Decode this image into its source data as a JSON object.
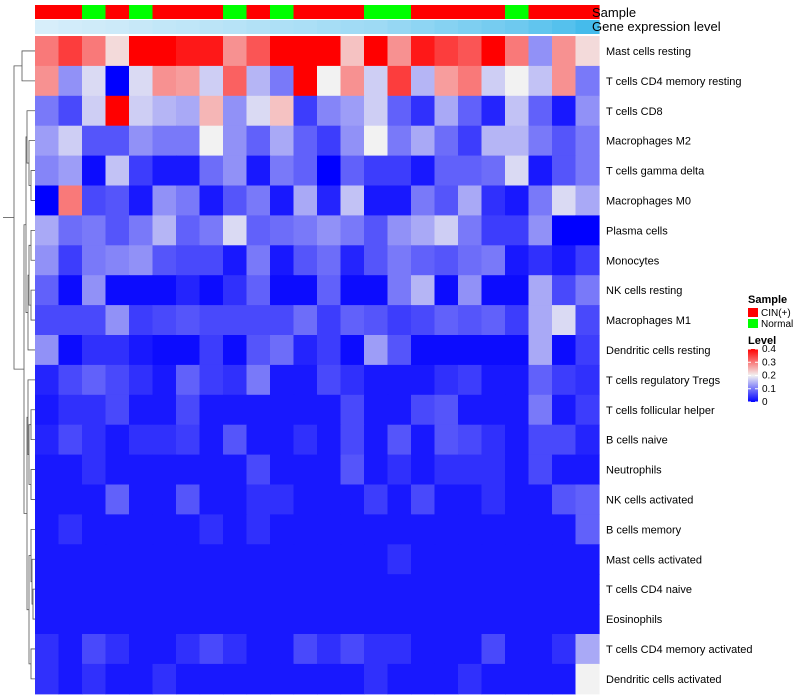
{
  "chart_data": {
    "type": "heatmap",
    "annotations": {
      "sample_label": "Sample",
      "expression_label": "Gene expression level"
    },
    "sample_groups": [
      "CIN",
      "CIN",
      "Normal",
      "CIN",
      "Normal",
      "CIN",
      "CIN",
      "CIN",
      "Normal",
      "CIN",
      "Normal",
      "CIN",
      "CIN",
      "CIN",
      "Normal",
      "Normal",
      "CIN",
      "CIN",
      "CIN",
      "CIN",
      "Normal",
      "CIN",
      "CIN",
      "CIN"
    ],
    "expression_levels": [
      0.05,
      0.08,
      0.1,
      0.12,
      0.15,
      0.18,
      0.2,
      0.22,
      0.25,
      0.28,
      0.3,
      0.32,
      0.35,
      0.38,
      0.4,
      0.45,
      0.5,
      0.55,
      0.6,
      0.65,
      0.7,
      0.78,
      0.85,
      0.95
    ],
    "rows": [
      "Mast cells resting",
      "T cells CD4 memory resting",
      "T cells CD8",
      "Macrophages M2",
      "T cells gamma delta",
      "Macrophages M0",
      "Plasma cells",
      "Monocytes",
      "NK cells resting",
      "Macrophages M1",
      "Dendritic cells resting",
      "T cells regulatory  Tregs",
      "T cells follicular helper",
      "B cells naive",
      "Neutrophils",
      "NK cells activated",
      "B cells memory",
      "Mast cells activated",
      "T cells CD4 naive",
      "Eosinophils",
      "T cells CD4 memory activated",
      "Dendritic cells activated"
    ],
    "values": [
      [
        0.3,
        0.35,
        0.3,
        0.22,
        0.4,
        0.4,
        0.38,
        0.38,
        0.28,
        0.33,
        0.4,
        0.4,
        0.4,
        0.24,
        0.4,
        0.28,
        0.38,
        0.35,
        0.33,
        0.4,
        0.3,
        0.12,
        0.28,
        0.22
      ],
      [
        0.28,
        0.12,
        0.18,
        0.0,
        0.18,
        0.28,
        0.27,
        0.17,
        0.32,
        0.15,
        0.1,
        0.4,
        0.2,
        0.28,
        0.17,
        0.35,
        0.15,
        0.27,
        0.3,
        0.17,
        0.2,
        0.16,
        0.28,
        0.1
      ],
      [
        0.1,
        0.06,
        0.17,
        0.4,
        0.17,
        0.15,
        0.14,
        0.25,
        0.12,
        0.18,
        0.24,
        0.05,
        0.11,
        0.13,
        0.17,
        0.08,
        0.04,
        0.14,
        0.08,
        0.03,
        0.16,
        0.08,
        0.02,
        0.12
      ],
      [
        0.13,
        0.17,
        0.07,
        0.07,
        0.12,
        0.1,
        0.1,
        0.2,
        0.12,
        0.08,
        0.14,
        0.08,
        0.05,
        0.12,
        0.2,
        0.1,
        0.14,
        0.09,
        0.05,
        0.15,
        0.15,
        0.1,
        0.07,
        0.1
      ],
      [
        0.11,
        0.13,
        0.01,
        0.16,
        0.05,
        0.02,
        0.02,
        0.09,
        0.12,
        0.02,
        0.1,
        0.08,
        0.0,
        0.08,
        0.05,
        0.05,
        0.02,
        0.08,
        0.08,
        0.09,
        0.18,
        0.02,
        0.07,
        0.1
      ],
      [
        0.0,
        0.3,
        0.06,
        0.07,
        0.02,
        0.12,
        0.1,
        0.02,
        0.07,
        0.1,
        0.02,
        0.14,
        0.03,
        0.16,
        0.02,
        0.02,
        0.1,
        0.07,
        0.14,
        0.04,
        0.02,
        0.1,
        0.18,
        0.14
      ],
      [
        0.14,
        0.09,
        0.1,
        0.07,
        0.1,
        0.15,
        0.08,
        0.1,
        0.18,
        0.08,
        0.09,
        0.1,
        0.12,
        0.1,
        0.07,
        0.12,
        0.14,
        0.17,
        0.1,
        0.05,
        0.05,
        0.12,
        0.0,
        0.0
      ],
      [
        0.12,
        0.05,
        0.1,
        0.11,
        0.12,
        0.07,
        0.06,
        0.06,
        0.02,
        0.1,
        0.02,
        0.07,
        0.09,
        0.03,
        0.07,
        0.1,
        0.08,
        0.07,
        0.09,
        0.1,
        0.02,
        0.04,
        0.02,
        0.05
      ],
      [
        0.08,
        0.01,
        0.12,
        0.01,
        0.01,
        0.01,
        0.03,
        0.01,
        0.04,
        0.08,
        0.01,
        0.01,
        0.08,
        0.01,
        0.01,
        0.1,
        0.15,
        0.01,
        0.12,
        0.01,
        0.01,
        0.14,
        0.06,
        0.1
      ],
      [
        0.06,
        0.06,
        0.06,
        0.12,
        0.05,
        0.06,
        0.07,
        0.06,
        0.06,
        0.06,
        0.06,
        0.09,
        0.05,
        0.08,
        0.07,
        0.05,
        0.06,
        0.08,
        0.07,
        0.08,
        0.05,
        0.14,
        0.18,
        0.06
      ],
      [
        0.12,
        0.01,
        0.04,
        0.04,
        0.02,
        0.01,
        0.01,
        0.05,
        0.01,
        0.07,
        0.09,
        0.03,
        0.05,
        0.01,
        0.13,
        0.07,
        0.01,
        0.01,
        0.01,
        0.01,
        0.01,
        0.14,
        0.01,
        0.05
      ],
      [
        0.03,
        0.06,
        0.08,
        0.06,
        0.04,
        0.02,
        0.08,
        0.05,
        0.04,
        0.1,
        0.02,
        0.02,
        0.06,
        0.04,
        0.02,
        0.02,
        0.02,
        0.04,
        0.05,
        0.02,
        0.02,
        0.08,
        0.05,
        0.04
      ],
      [
        0.02,
        0.04,
        0.04,
        0.06,
        0.02,
        0.02,
        0.06,
        0.02,
        0.02,
        0.02,
        0.02,
        0.02,
        0.02,
        0.06,
        0.02,
        0.02,
        0.06,
        0.07,
        0.02,
        0.02,
        0.02,
        0.1,
        0.02,
        0.05
      ],
      [
        0.03,
        0.06,
        0.04,
        0.02,
        0.04,
        0.04,
        0.05,
        0.02,
        0.07,
        0.02,
        0.02,
        0.04,
        0.02,
        0.06,
        0.02,
        0.07,
        0.02,
        0.07,
        0.06,
        0.04,
        0.02,
        0.06,
        0.06,
        0.03
      ],
      [
        0.02,
        0.02,
        0.04,
        0.02,
        0.02,
        0.02,
        0.02,
        0.02,
        0.02,
        0.06,
        0.02,
        0.02,
        0.02,
        0.07,
        0.02,
        0.04,
        0.02,
        0.04,
        0.04,
        0.04,
        0.02,
        0.06,
        0.02,
        0.02
      ],
      [
        0.02,
        0.02,
        0.02,
        0.08,
        0.02,
        0.02,
        0.07,
        0.02,
        0.02,
        0.04,
        0.04,
        0.02,
        0.02,
        0.02,
        0.05,
        0.02,
        0.06,
        0.02,
        0.02,
        0.04,
        0.02,
        0.02,
        0.07,
        0.08
      ],
      [
        0.02,
        0.04,
        0.02,
        0.02,
        0.02,
        0.02,
        0.02,
        0.04,
        0.02,
        0.04,
        0.02,
        0.02,
        0.02,
        0.02,
        0.02,
        0.02,
        0.02,
        0.02,
        0.02,
        0.02,
        0.02,
        0.02,
        0.02,
        0.08
      ],
      [
        0.02,
        0.02,
        0.02,
        0.02,
        0.02,
        0.02,
        0.02,
        0.02,
        0.02,
        0.02,
        0.02,
        0.02,
        0.02,
        0.02,
        0.02,
        0.04,
        0.02,
        0.02,
        0.02,
        0.02,
        0.02,
        0.02,
        0.02,
        0.02
      ],
      [
        0.02,
        0.02,
        0.02,
        0.02,
        0.02,
        0.02,
        0.02,
        0.02,
        0.02,
        0.02,
        0.02,
        0.02,
        0.02,
        0.02,
        0.02,
        0.02,
        0.02,
        0.02,
        0.02,
        0.02,
        0.02,
        0.02,
        0.02,
        0.02
      ],
      [
        0.02,
        0.02,
        0.02,
        0.02,
        0.02,
        0.02,
        0.02,
        0.02,
        0.02,
        0.02,
        0.02,
        0.02,
        0.02,
        0.02,
        0.02,
        0.02,
        0.02,
        0.02,
        0.02,
        0.02,
        0.02,
        0.02,
        0.02,
        0.02
      ],
      [
        0.04,
        0.02,
        0.06,
        0.04,
        0.02,
        0.02,
        0.04,
        0.06,
        0.04,
        0.02,
        0.02,
        0.06,
        0.04,
        0.06,
        0.04,
        0.04,
        0.02,
        0.02,
        0.02,
        0.06,
        0.02,
        0.02,
        0.04,
        0.14
      ],
      [
        0.04,
        0.02,
        0.04,
        0.02,
        0.02,
        0.04,
        0.02,
        0.02,
        0.02,
        0.02,
        0.02,
        0.02,
        0.02,
        0.02,
        0.04,
        0.02,
        0.02,
        0.02,
        0.04,
        0.02,
        0.02,
        0.02,
        0.02,
        0.2
      ]
    ],
    "color_scale": {
      "min": 0,
      "max": 0.4,
      "low": "#0000ff",
      "mid": "#f2f2f2",
      "high": "#ff0000",
      "midpoint": 0.2
    },
    "legend": {
      "sample_title": "Sample",
      "sample_entries": [
        {
          "label": "CIN(+)",
          "color": "#ff0000"
        },
        {
          "label": "Normal",
          "color": "#00ff00"
        }
      ],
      "level_title": "Level",
      "level_ticks": [
        "0.4",
        "0.3",
        "0.2",
        "0.1",
        "0"
      ],
      "level_tick_values": [
        0.4,
        0.3,
        0.2,
        0.1,
        0
      ],
      "placement": "right"
    },
    "dendrogram": "rows",
    "grid": false
  },
  "colors": {
    "cin": "#ff0000",
    "normal": "#00ff00",
    "expr_low": "#dff1fb",
    "expr_high": "#3db8ea"
  }
}
